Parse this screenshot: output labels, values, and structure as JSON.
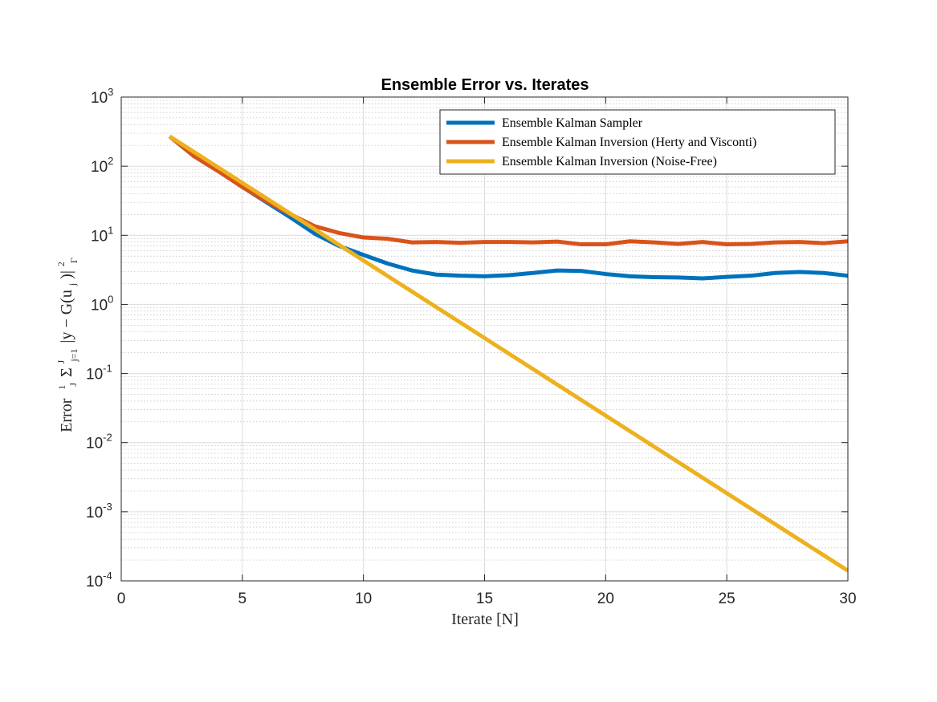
{
  "chart_data": {
    "type": "line",
    "title": "Ensemble Error vs. Iterates",
    "xlabel": "Iterate [N]",
    "ylabel": "Error 1/J Σ_{j=1}^{J} |y − G(u_j)|²_Γ",
    "ylabel_parts": {
      "prefix": "Error",
      "frac_num": "1",
      "frac_den": "J",
      "sigma": "Σ",
      "sub": "j=1",
      "sup": "J",
      "body": "|y − G(u",
      "body_sub": "j",
      "body_end": ")|",
      "exp_sup": "2",
      "exp_sub": "Γ"
    },
    "xlim": [
      0,
      30
    ],
    "ylim": [
      0.0001,
      1000
    ],
    "yscale": "log",
    "grid": true,
    "minor_grid": true,
    "legend_position": "top-right",
    "xticks": [
      0,
      5,
      10,
      15,
      20,
      25,
      30
    ],
    "yticks": [
      {
        "base": "10",
        "exp": "-4",
        "value": 0.0001
      },
      {
        "base": "10",
        "exp": "-3",
        "value": 0.001
      },
      {
        "base": "10",
        "exp": "-2",
        "value": 0.01
      },
      {
        "base": "10",
        "exp": "-1",
        "value": 0.1
      },
      {
        "base": "10",
        "exp": "0",
        "value": 1
      },
      {
        "base": "10",
        "exp": "1",
        "value": 10
      },
      {
        "base": "10",
        "exp": "2",
        "value": 100
      },
      {
        "base": "10",
        "exp": "3",
        "value": 1000
      }
    ],
    "series": [
      {
        "name": "Ensemble Kalman Sampler",
        "color": "#0072BD",
        "x": [
          2,
          3,
          4,
          5,
          6,
          7,
          8,
          9,
          10,
          11,
          12,
          13,
          14,
          15,
          16,
          17,
          18,
          19,
          20,
          21,
          22,
          23,
          24,
          25,
          26,
          27,
          28,
          29,
          30
        ],
        "y": [
          270,
          140,
          85,
          50,
          30,
          18,
          10.5,
          7,
          5.2,
          3.9,
          3.1,
          2.7,
          2.6,
          2.55,
          2.65,
          2.85,
          3.1,
          3.05,
          2.75,
          2.55,
          2.48,
          2.45,
          2.38,
          2.5,
          2.6,
          2.85,
          2.95,
          2.85,
          2.6
        ]
      },
      {
        "name": "Ensemble Kalman Inversion (Herty and Visconti)",
        "color": "#D95319",
        "x": [
          2,
          3,
          4,
          5,
          6,
          7,
          8,
          9,
          10,
          11,
          12,
          13,
          14,
          15,
          16,
          17,
          18,
          19,
          20,
          21,
          22,
          23,
          24,
          25,
          26,
          27,
          28,
          29,
          30
        ],
        "y": [
          270,
          140,
          85,
          50,
          31,
          20,
          13.5,
          10.8,
          9.3,
          8.9,
          7.9,
          8.0,
          7.8,
          8.0,
          8.0,
          7.9,
          8.1,
          7.4,
          7.4,
          8.2,
          7.9,
          7.5,
          8.0,
          7.4,
          7.5,
          7.9,
          8.0,
          7.7,
          8.2
        ]
      },
      {
        "name": "Ensemble Kalman Inversion (Noise-Free)",
        "color": "#EDB120",
        "x": [
          2,
          30
        ],
        "y": [
          270,
          0.00014
        ]
      }
    ]
  }
}
